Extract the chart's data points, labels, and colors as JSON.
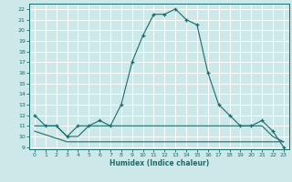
{
  "xlabel": "Humidex (Indice chaleur)",
  "bg_color": "#cce8e8",
  "grid_color": "#ffffff",
  "line_color": "#1a6b6b",
  "xlim": [
    -0.5,
    23.5
  ],
  "ylim": [
    8.8,
    22.5
  ],
  "yticks": [
    9,
    10,
    11,
    12,
    13,
    14,
    15,
    16,
    17,
    18,
    19,
    20,
    21,
    22
  ],
  "xticks": [
    0,
    1,
    2,
    3,
    4,
    5,
    6,
    7,
    8,
    9,
    10,
    11,
    12,
    13,
    14,
    15,
    16,
    17,
    18,
    19,
    20,
    21,
    22,
    23
  ],
  "series1": {
    "x": [
      0,
      1,
      2,
      3,
      4,
      5,
      6,
      7,
      8,
      9,
      10,
      11,
      12,
      13,
      14,
      15,
      16,
      17,
      18,
      19,
      20,
      21,
      22,
      23
    ],
    "y": [
      12,
      11,
      11,
      10,
      11,
      11,
      11.5,
      11,
      13,
      17,
      19.5,
      21.5,
      21.5,
      22,
      21,
      20.5,
      16,
      13,
      12,
      11,
      11,
      11.5,
      10.5,
      9
    ]
  },
  "series2": {
    "x": [
      0,
      1,
      2,
      3,
      4,
      5,
      6,
      7,
      8,
      9,
      10,
      11,
      12,
      13,
      14,
      15,
      16,
      17,
      18,
      19,
      20,
      21,
      22,
      23
    ],
    "y": [
      11,
      11,
      11,
      10,
      10,
      11,
      11,
      11,
      11,
      11,
      11,
      11,
      11,
      11,
      11,
      11,
      11,
      11,
      11,
      11,
      11,
      11,
      10,
      9.5
    ]
  },
  "series3": {
    "x": [
      0,
      3,
      4,
      5,
      6,
      7,
      8,
      9,
      10,
      11,
      12,
      13,
      14,
      15,
      16,
      17,
      18,
      19,
      20,
      21,
      22,
      23
    ],
    "y": [
      10.5,
      9.5,
      9.5,
      9.5,
      9.5,
      9.5,
      9.5,
      9.5,
      9.5,
      9.5,
      9.5,
      9.5,
      9.5,
      9.5,
      9.5,
      9.5,
      9.5,
      9.5,
      9.5,
      9.5,
      9.5,
      9.5
    ]
  }
}
